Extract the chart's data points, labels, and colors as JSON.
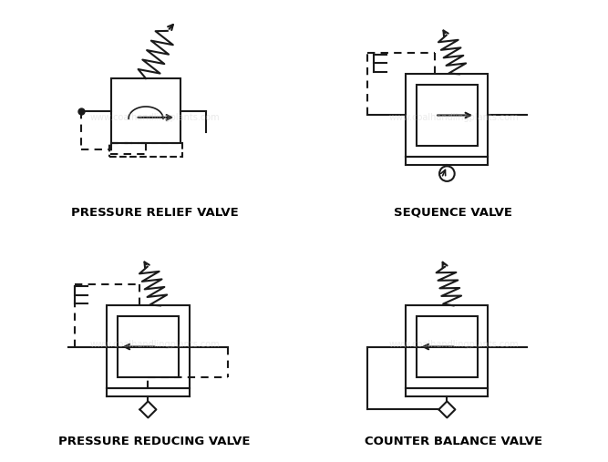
{
  "bg_color": "#f5f5f5",
  "border_color": "#333333",
  "line_color": "#1a1a1a",
  "title_color": "#000000",
  "labels": [
    "PRESSURE RELIEF VALVE",
    "SEQUENCE VALVE",
    "PRESSURE REDUCING VALVE",
    "COUNTER BALANCE VALVE"
  ],
  "label_fontsize": 9.5,
  "grid_color": "#cccccc"
}
